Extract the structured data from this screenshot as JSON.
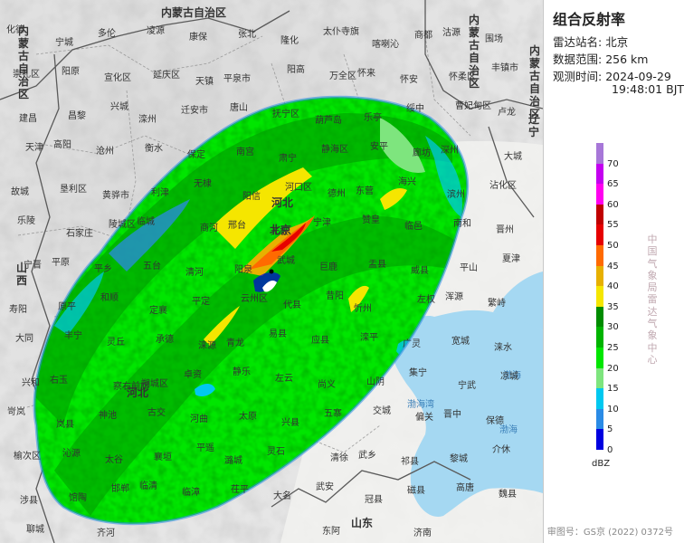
{
  "panel": {
    "title": "组合反射率",
    "station_label": "雷达站名:",
    "station_value": "北京",
    "range_label": "数据范围:",
    "range_value": "256 km",
    "time_label": "观测时间:",
    "time_date": "2024-09-29",
    "time_clock": "19:48:01 BJT",
    "org": "中国气象局雷达气象中心",
    "unit": "dBZ",
    "approval": "审图号：GS京 (2022) 0372号"
  },
  "legend": [
    {
      "label": "70",
      "color": "#a777d8"
    },
    {
      "label": "65",
      "color": "#c400f0"
    },
    {
      "label": "60",
      "color": "#ff00f0"
    },
    {
      "label": "55",
      "color": "#c00000"
    },
    {
      "label": "50",
      "color": "#e60000"
    },
    {
      "label": "45",
      "color": "#ff6a00"
    },
    {
      "label": "40",
      "color": "#e7b000"
    },
    {
      "label": "35",
      "color": "#f5e600"
    },
    {
      "label": "30",
      "color": "#008c00"
    },
    {
      "label": "25",
      "color": "#00b400"
    },
    {
      "label": "20",
      "color": "#00e600"
    },
    {
      "label": "15",
      "color": "#7ee57e"
    },
    {
      "label": "10",
      "color": "#00c8f0"
    },
    {
      "label": "5",
      "color": "#2a8be6"
    },
    {
      "label": "0",
      "color": "#0000e0"
    }
  ],
  "map": {
    "provinces": [
      "内蒙古自治区",
      "内蒙古自治区",
      "内蒙古自治区",
      "内蒙古自治区",
      "山西",
      "河北",
      "河北",
      "辽宁",
      "山东",
      "北京"
    ],
    "seas": [
      "渤海",
      "渤海湾",
      "渤海"
    ],
    "places": [
      {
        "name": "化德"
      },
      {
        "name": "太仆寺旗"
      },
      {
        "name": "多伦"
      },
      {
        "name": "商都"
      },
      {
        "name": "康保"
      },
      {
        "name": "围场"
      },
      {
        "name": "隆化"
      },
      {
        "name": "宁城"
      },
      {
        "name": "喀喇沁"
      },
      {
        "name": "凌源"
      },
      {
        "name": "沽源"
      },
      {
        "name": "张北"
      },
      {
        "name": "崇礼区"
      },
      {
        "name": "万全区"
      },
      {
        "name": "宣化区"
      },
      {
        "name": "怀安"
      },
      {
        "name": "天镇"
      },
      {
        "name": "丰镇市"
      },
      {
        "name": "阳高"
      },
      {
        "name": "阳原"
      },
      {
        "name": "怀来"
      },
      {
        "name": "延庆区"
      },
      {
        "name": "怀柔区"
      },
      {
        "name": "平泉市"
      },
      {
        "name": "建昌"
      },
      {
        "name": "葫芦岛"
      },
      {
        "name": "兴城"
      },
      {
        "name": "绥中"
      },
      {
        "name": "迁安市"
      },
      {
        "name": "卢龙"
      },
      {
        "name": "抚宁区"
      },
      {
        "name": "昌黎"
      },
      {
        "name": "乐亭"
      },
      {
        "name": "滦州"
      },
      {
        "name": "曹妃甸区"
      },
      {
        "name": "唐山"
      },
      {
        "name": "天津"
      },
      {
        "name": "静海区"
      },
      {
        "name": "沧州"
      },
      {
        "name": "廊坊"
      },
      {
        "name": "保定"
      },
      {
        "name": "大城"
      },
      {
        "name": "肃宁"
      },
      {
        "name": "高阳"
      },
      {
        "name": "安平"
      },
      {
        "name": "衡水"
      },
      {
        "name": "深州"
      },
      {
        "name": "南宫"
      },
      {
        "name": "故城"
      },
      {
        "name": "德州"
      },
      {
        "name": "黄骅市"
      },
      {
        "name": "海兴"
      },
      {
        "name": "无棣"
      },
      {
        "name": "沾化区"
      },
      {
        "name": "河口区"
      },
      {
        "name": "垦利区"
      },
      {
        "name": "东营"
      },
      {
        "name": "利津"
      },
      {
        "name": "滨州"
      },
      {
        "name": "阳信"
      },
      {
        "name": "乐陵"
      },
      {
        "name": "宁津"
      },
      {
        "name": "陵城区"
      },
      {
        "name": "临邑"
      },
      {
        "name": "商河"
      },
      {
        "name": "晋州"
      },
      {
        "name": "无极"
      },
      {
        "name": "石家庄"
      },
      {
        "name": "赞皇"
      },
      {
        "name": "临城"
      },
      {
        "name": "南和"
      },
      {
        "name": "邢台"
      },
      {
        "name": "宁晋"
      },
      {
        "name": "巨鹿"
      },
      {
        "name": "平乡"
      },
      {
        "name": "威县"
      },
      {
        "name": "清河"
      },
      {
        "name": "夏津"
      },
      {
        "name": "武城"
      },
      {
        "name": "平原"
      },
      {
        "name": "盂县"
      },
      {
        "name": "五台"
      },
      {
        "name": "平山"
      },
      {
        "name": "阳泉"
      },
      {
        "name": "寿阳"
      },
      {
        "name": "昔阳"
      },
      {
        "name": "和顺"
      },
      {
        "name": "左权"
      },
      {
        "name": "平定"
      },
      {
        "name": "繁峙"
      },
      {
        "name": "代县"
      },
      {
        "name": "原平"
      },
      {
        "name": "忻州"
      },
      {
        "name": "定襄"
      },
      {
        "name": "浑源"
      },
      {
        "name": "云州区"
      },
      {
        "name": "大同"
      },
      {
        "name": "应县"
      },
      {
        "name": "灵丘"
      },
      {
        "name": "广灵"
      },
      {
        "name": "涞源"
      },
      {
        "name": "涞水"
      },
      {
        "name": "易县"
      },
      {
        "name": "丰宁"
      },
      {
        "name": "滦平"
      },
      {
        "name": "承德"
      },
      {
        "name": "宽城"
      },
      {
        "name": "青龙"
      },
      {
        "name": "兴和"
      },
      {
        "name": "尚义"
      },
      {
        "name": "察右前旗"
      },
      {
        "name": "集宁"
      },
      {
        "name": "卓资"
      },
      {
        "name": "凉城"
      },
      {
        "name": "左云"
      },
      {
        "name": "右玉"
      },
      {
        "name": "山阴"
      },
      {
        "name": "朔城区"
      },
      {
        "name": "宁武"
      },
      {
        "name": "静乐"
      },
      {
        "name": "岢岚"
      },
      {
        "name": "五寨"
      },
      {
        "name": "神池"
      },
      {
        "name": "偏关"
      },
      {
        "name": "河曲"
      },
      {
        "name": "保德"
      },
      {
        "name": "兴县"
      },
      {
        "name": "岚县"
      },
      {
        "name": "交城"
      },
      {
        "name": "古交"
      },
      {
        "name": "晋中"
      },
      {
        "name": "太原"
      },
      {
        "name": "榆次区"
      },
      {
        "name": "清徐"
      },
      {
        "name": "太谷"
      },
      {
        "name": "祁县"
      },
      {
        "name": "平遥"
      },
      {
        "name": "介休"
      },
      {
        "name": "灵石"
      },
      {
        "name": "沁源"
      },
      {
        "name": "武乡"
      },
      {
        "name": "襄垣"
      },
      {
        "name": "黎城"
      },
      {
        "name": "潞城"
      },
      {
        "name": "涉县"
      },
      {
        "name": "武安"
      },
      {
        "name": "邯郸"
      },
      {
        "name": "磁县"
      },
      {
        "name": "临漳"
      },
      {
        "name": "魏县"
      },
      {
        "name": "大名"
      },
      {
        "name": "馆陶"
      },
      {
        "name": "冠县"
      },
      {
        "name": "临清"
      },
      {
        "name": "高唐"
      },
      {
        "name": "茌平"
      },
      {
        "name": "聊城"
      },
      {
        "name": "东阿"
      },
      {
        "name": "齐河"
      },
      {
        "name": "济南"
      }
    ]
  }
}
